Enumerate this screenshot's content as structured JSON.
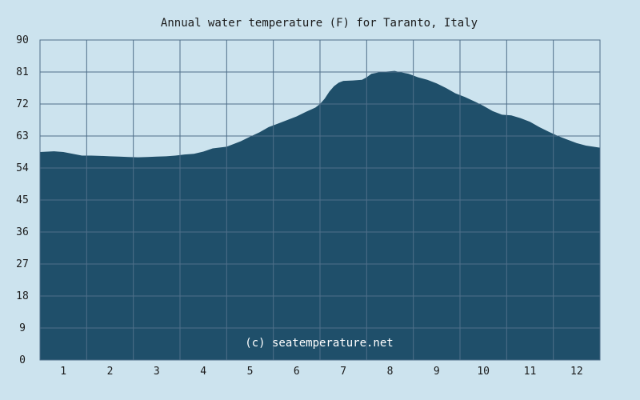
{
  "chart_data": {
    "type": "area",
    "title": "Annual water temperature (F) for Taranto, Italy",
    "watermark": "(c) seatemperature.net",
    "xlabel": "",
    "ylabel": "",
    "categories": [
      "1",
      "2",
      "3",
      "4",
      "5",
      "6",
      "7",
      "8",
      "9",
      "10",
      "11",
      "12"
    ],
    "y_ticks": [
      0,
      9,
      18,
      27,
      36,
      45,
      54,
      63,
      72,
      81,
      90
    ],
    "ylim": [
      0,
      90
    ],
    "xlim": [
      0.5,
      12.5
    ],
    "grid": true,
    "legend": "none",
    "x": [
      0.5,
      0.8,
      1.0,
      1.2,
      1.4,
      1.6,
      1.8,
      2.0,
      2.2,
      2.4,
      2.6,
      2.8,
      3.0,
      3.2,
      3.4,
      3.6,
      3.8,
      4.0,
      4.2,
      4.5,
      4.8,
      5.0,
      5.2,
      5.4,
      5.6,
      5.8,
      6.0,
      6.2,
      6.4,
      6.5,
      6.6,
      6.7,
      6.8,
      6.9,
      7.0,
      7.2,
      7.4,
      7.5,
      7.6,
      7.8,
      8.0,
      8.1,
      8.2,
      8.4,
      8.6,
      8.8,
      9.0,
      9.2,
      9.4,
      9.6,
      9.8,
      10.0,
      10.2,
      10.4,
      10.6,
      10.8,
      11.0,
      11.2,
      11.4,
      11.6,
      11.8,
      12.0,
      12.2,
      12.5
    ],
    "values": [
      58.5,
      58.7,
      58.5,
      58.0,
      57.5,
      57.5,
      57.4,
      57.3,
      57.2,
      57.1,
      57.0,
      57.1,
      57.2,
      57.3,
      57.5,
      57.8,
      58.0,
      58.6,
      59.5,
      60.0,
      61.5,
      62.8,
      64.0,
      65.5,
      66.5,
      67.5,
      68.5,
      69.8,
      71.0,
      72.0,
      73.5,
      75.5,
      77.0,
      78.0,
      78.5,
      78.6,
      78.8,
      79.5,
      80.5,
      81.0,
      81.2,
      81.3,
      81.0,
      80.5,
      79.5,
      78.8,
      77.8,
      76.5,
      75.0,
      74.0,
      72.8,
      71.5,
      70.0,
      69.0,
      68.8,
      68.0,
      67.0,
      65.5,
      64.2,
      63.0,
      62.0,
      61.0,
      60.3,
      59.7
    ],
    "colors": {
      "background": "#cce3ee",
      "area_fill": "#1f4f6a",
      "grid_line": "#4f6f8a",
      "plot_border": "#4f6f8a",
      "text": "#1a1a1a",
      "watermark": "#ffffff"
    }
  }
}
